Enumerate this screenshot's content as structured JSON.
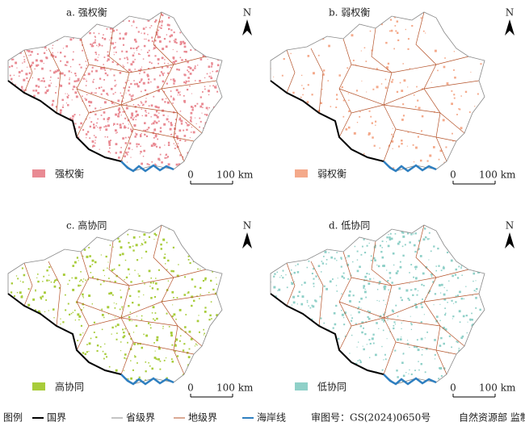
{
  "panels": [
    {
      "title": "a. 强权衡",
      "legend_label": "强权衡",
      "color": "#e98a93"
    },
    {
      "title": "b. 弱权衡",
      "legend_label": "弱权衡",
      "color": "#f4a98a"
    },
    {
      "title": "c. 高协同",
      "legend_label": "高协同",
      "color": "#a8cc3a"
    },
    {
      "title": "d. 低协同",
      "legend_label": "低协同",
      "color": "#8fd0c8"
    }
  ],
  "scale_bar": {
    "start": "0",
    "end": "100 km"
  },
  "north_label": "N",
  "legend": {
    "title": "图例",
    "items": [
      {
        "label": "国界",
        "color": "#000000"
      },
      {
        "label": "省级界",
        "color": "#888888"
      },
      {
        "label": "地级界",
        "color": "#b5532a"
      },
      {
        "label": "海岸线",
        "color": "#2e7fc0"
      }
    ]
  },
  "approval": "审图号：GS(2024)0650号",
  "producer": "自然资源部 监制"
}
